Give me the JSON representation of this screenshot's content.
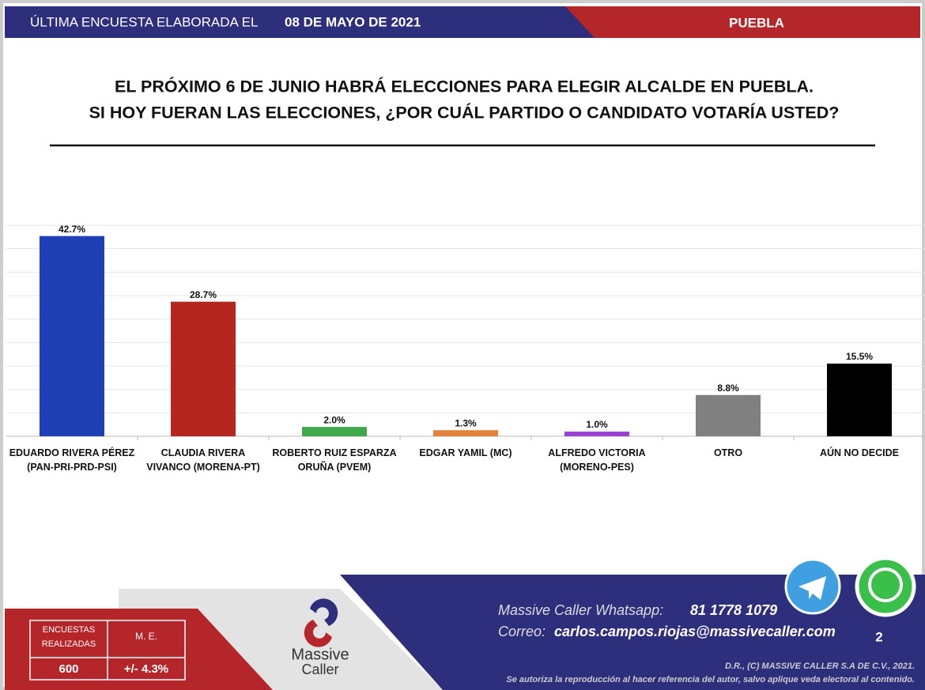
{
  "header": {
    "prefix": "ÚLTIMA ENCUESTA ELABORADA EL",
    "date": "08 DE MAYO DE 2021",
    "region": "PUEBLA"
  },
  "chart_data": {
    "type": "bar",
    "title": "EL PRÓXIMO 6 DE JUNIO HABRÁ ELECCIONES PARA ELEGIR ALCALDE EN PUEBLA.",
    "subtitle": "SI HOY FUERAN LAS ELECCIONES, ¿POR CUÁL PARTIDO O CANDIDATO VOTARÍA USTED?",
    "categories": [
      "EDUARDO RIVERA PÉREZ (PAN-PRI-PRD-PSI)",
      "CLAUDIA RIVERA VIVANCO (MORENA-PT)",
      "ROBERTO RUIZ ESPARZA ORUÑA (PVEM)",
      "EDGAR YAMIL (MC)",
      "ALFREDO VICTORIA (MORENO-PES)",
      "OTRO",
      "AÚN NO DECIDE"
    ],
    "values": [
      42.7,
      28.7,
      2.0,
      1.3,
      1.0,
      8.8,
      15.5
    ],
    "value_labels": [
      "42.7%",
      "28.7%",
      "2.0%",
      "1.3%",
      "1.0%",
      "8.8%",
      "15.5%"
    ],
    "colors": [
      "#1f3fb4",
      "#b5261e",
      "#3fa84a",
      "#e0823a",
      "#9a3fd6",
      "#808080",
      "#000000"
    ],
    "ylim": [
      0,
      45
    ],
    "yticks": [
      0,
      5,
      10,
      15,
      20,
      25,
      30,
      35,
      40,
      45
    ],
    "grid": true
  },
  "footer": {
    "surveys_label": "ENCUESTAS REALIZADAS",
    "surveys": "600",
    "me_label": "M. E.",
    "me": "+/- 4.3%",
    "logo_top": "Massive",
    "logo_bottom": "Caller",
    "whatsapp_label": "Massive Caller Whatsapp:",
    "whatsapp": "81 1778 1079",
    "email_label": "Correo:",
    "email": "carlos.campos.riojas@massivecaller.com",
    "page": "2",
    "rights": "D.R., (C) MASSIVE CALLER S.A DE C.V., 2021.",
    "notice": "Se autoriza la reproducción al hacer referencia del autor, salvo aplique veda electoral al contenido."
  }
}
